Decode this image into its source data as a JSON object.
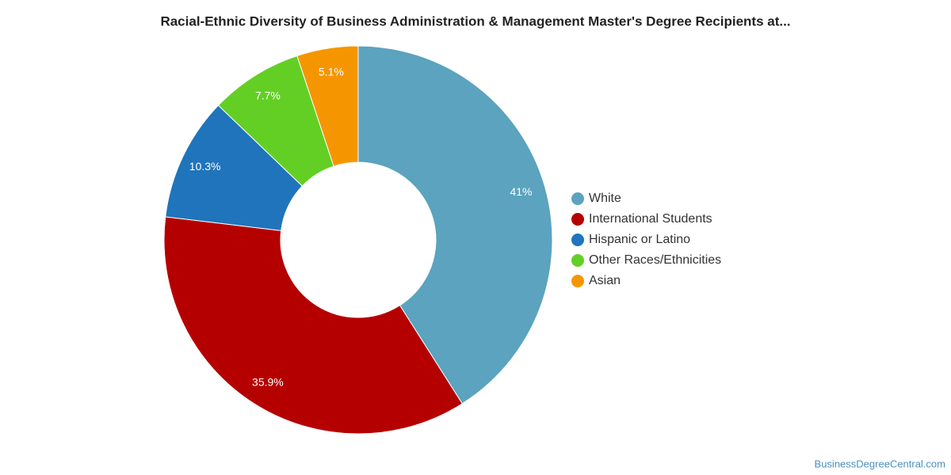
{
  "chart_data": {
    "type": "donut",
    "title": "Racial-Ethnic Diversity of Business Administration & Management Master's Degree Recipients at...",
    "categories": [
      "White",
      "International Students",
      "Hispanic or Latino",
      "Other Races/Ethnicities",
      "Asian"
    ],
    "values": [
      41,
      35.9,
      10.3,
      7.7,
      5.1
    ],
    "value_labels": [
      "41%",
      "35.9%",
      "10.3%",
      "7.7%",
      "5.1%"
    ],
    "colors": [
      "#5ba3be",
      "#b50000",
      "#1f74bb",
      "#63cf25",
      "#f59600"
    ],
    "legend": "right",
    "source": "BusinessDegreeCentral.com"
  }
}
